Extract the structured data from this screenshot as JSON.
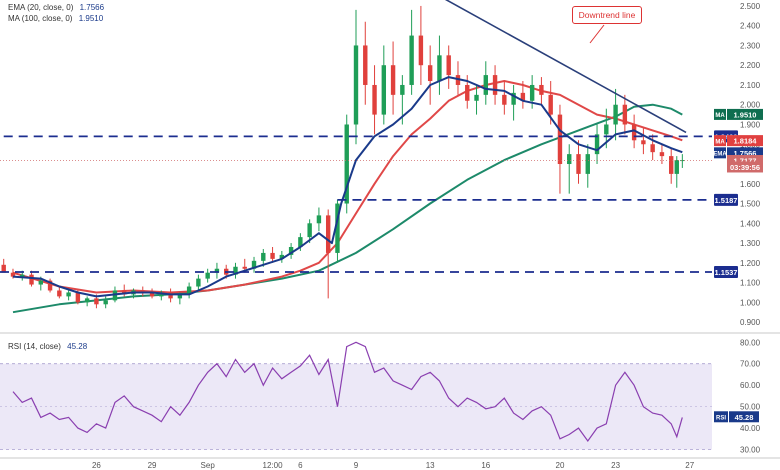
{
  "chart_data": {
    "type": "candlestick",
    "legend_price": [
      {
        "text": "EMA (20, close, 0)",
        "value": "1.7566",
        "color": "#1a3a8a"
      },
      {
        "text": "MA (100, close, 0)",
        "value": "1.9510",
        "color": "#1a3a8a"
      }
    ],
    "legend_rsi": {
      "text": "RSI (14, close)",
      "value": "45.28",
      "color": "#1a3a8a"
    },
    "x_labels": [
      {
        "label": "26",
        "day": 26
      },
      {
        "label": "29",
        "day": 29
      },
      {
        "label": "Sep",
        "day": 32
      },
      {
        "label": "12:00",
        "day": 35.5
      },
      {
        "label": "6",
        "day": 37
      },
      {
        "label": "9",
        "day": 40
      },
      {
        "label": "13",
        "day": 44
      },
      {
        "label": "16",
        "day": 47
      },
      {
        "label": "20",
        "day": 51
      },
      {
        "label": "23",
        "day": 54
      },
      {
        "label": "27",
        "day": 58
      }
    ],
    "price_axis": {
      "min": 0.86,
      "max": 2.53,
      "ticks": [
        "0.900",
        "1.000",
        "1.100",
        "1.200",
        "1.300",
        "1.400",
        "1.500",
        "1.600",
        "1.700",
        "1.800",
        "1.900",
        "2.000",
        "2.100",
        "2.200",
        "2.300",
        "2.400",
        "2.500"
      ]
    },
    "rsi_axis": {
      "min": 27,
      "max": 82,
      "ticks": [
        "30.00",
        "40.00",
        "50.00",
        "60.00",
        "70.00",
        "80.00"
      ]
    },
    "horizontal_levels": [
      {
        "value": 1.84,
        "label": "1.8400"
      },
      {
        "value": 1.5187,
        "label": "1.5187"
      },
      {
        "value": 1.1537,
        "label": "1.1537"
      }
    ],
    "tags": [
      {
        "series": "MA",
        "price": 1.951,
        "tag": "MA",
        "label": "1.9510",
        "color": "#0f6e50"
      },
      {
        "series": "MA",
        "price": 1.8184,
        "tag": "MA",
        "label": "1.8184",
        "color": "#e04040"
      },
      {
        "series": "EMA",
        "price": 1.7566,
        "tag": "EMA",
        "label": "1.7566",
        "color": "#1a3a8a"
      },
      {
        "series": "price",
        "price": 1.7177,
        "tag": "",
        "label": "1.7177",
        "color": "#d06a6a"
      },
      {
        "series": "countdown",
        "price": 1.685,
        "tag": "",
        "label": "03:39:56",
        "color": "#d06a6a"
      }
    ],
    "rsi_tag": {
      "tag": "RSI",
      "label": "45.28",
      "value": 45.28,
      "color": "#1a3a8a"
    },
    "annotation": {
      "text": "Downtrend line",
      "color": "#d33"
    },
    "downtrend_line": {
      "from": {
        "day": 44.5,
        "price": 2.55
      },
      "to": {
        "day": 57.8,
        "price": 1.86
      }
    },
    "ema20": [
      [
        21.5,
        1.13
      ],
      [
        23,
        1.12
      ],
      [
        24,
        1.08
      ],
      [
        25,
        1.05
      ],
      [
        26,
        1.03
      ],
      [
        27,
        1.04
      ],
      [
        28,
        1.05
      ],
      [
        29,
        1.05
      ],
      [
        30,
        1.04
      ],
      [
        31,
        1.04
      ],
      [
        32,
        1.08
      ],
      [
        33,
        1.13
      ],
      [
        34,
        1.16
      ],
      [
        35,
        1.19
      ],
      [
        36,
        1.22
      ],
      [
        37,
        1.28
      ],
      [
        38,
        1.35
      ],
      [
        38.7,
        1.3
      ],
      [
        39.2,
        1.5
      ],
      [
        40,
        1.72
      ],
      [
        41,
        1.84
      ],
      [
        42,
        1.9
      ],
      [
        43,
        1.98
      ],
      [
        44,
        2.1
      ],
      [
        45,
        2.14
      ],
      [
        46,
        2.12
      ],
      [
        47,
        2.08
      ],
      [
        48,
        2.07
      ],
      [
        49,
        2.02
      ],
      [
        50,
        2.0
      ],
      [
        51,
        1.87
      ],
      [
        52,
        1.8
      ],
      [
        53,
        1.77
      ],
      [
        54,
        1.85
      ],
      [
        55,
        1.87
      ],
      [
        56,
        1.82
      ],
      [
        57,
        1.78
      ],
      [
        57.6,
        1.76
      ]
    ],
    "ma50": [
      [
        21.5,
        1.15
      ],
      [
        24,
        1.08
      ],
      [
        26,
        1.05
      ],
      [
        28,
        1.06
      ],
      [
        30,
        1.05
      ],
      [
        32,
        1.06
      ],
      [
        34,
        1.09
      ],
      [
        36,
        1.13
      ],
      [
        37,
        1.16
      ],
      [
        38,
        1.2
      ],
      [
        39,
        1.3
      ],
      [
        40,
        1.45
      ],
      [
        41,
        1.6
      ],
      [
        42,
        1.74
      ],
      [
        43,
        1.85
      ],
      [
        44,
        1.93
      ],
      [
        45,
        2.02
      ],
      [
        46,
        2.07
      ],
      [
        47,
        2.1
      ],
      [
        48,
        2.12
      ],
      [
        49,
        2.1
      ],
      [
        50,
        2.07
      ],
      [
        51,
        2.05
      ],
      [
        52,
        2.0
      ],
      [
        53,
        1.95
      ],
      [
        54,
        1.93
      ],
      [
        55,
        1.9
      ],
      [
        56,
        1.87
      ],
      [
        57,
        1.84
      ],
      [
        57.6,
        1.82
      ]
    ],
    "ma100": [
      [
        21.5,
        0.95
      ],
      [
        24,
        0.99
      ],
      [
        26,
        1.01
      ],
      [
        28,
        1.03
      ],
      [
        30,
        1.04
      ],
      [
        32,
        1.06
      ],
      [
        34,
        1.09
      ],
      [
        36,
        1.12
      ],
      [
        38,
        1.16
      ],
      [
        40,
        1.25
      ],
      [
        42,
        1.37
      ],
      [
        44,
        1.5
      ],
      [
        46,
        1.62
      ],
      [
        48,
        1.72
      ],
      [
        50,
        1.8
      ],
      [
        52,
        1.87
      ],
      [
        54,
        1.94
      ],
      [
        55,
        1.99
      ],
      [
        56,
        2.0
      ],
      [
        57,
        1.98
      ],
      [
        57.6,
        1.95
      ]
    ],
    "rsi": [
      [
        21.5,
        57
      ],
      [
        22,
        52
      ],
      [
        22.5,
        54
      ],
      [
        23,
        45
      ],
      [
        23.5,
        47
      ],
      [
        24,
        44
      ],
      [
        24.5,
        45
      ],
      [
        25,
        40
      ],
      [
        25.5,
        38
      ],
      [
        26,
        42
      ],
      [
        26.5,
        40
      ],
      [
        27,
        52
      ],
      [
        27.5,
        55
      ],
      [
        28,
        50
      ],
      [
        28.5,
        48
      ],
      [
        29,
        46
      ],
      [
        29.5,
        43
      ],
      [
        30,
        50
      ],
      [
        30.5,
        46
      ],
      [
        31,
        52
      ],
      [
        31.5,
        60
      ],
      [
        32,
        66
      ],
      [
        32.5,
        70
      ],
      [
        33,
        64
      ],
      [
        33.5,
        72
      ],
      [
        34,
        66
      ],
      [
        34.5,
        70
      ],
      [
        35,
        60
      ],
      [
        35.5,
        68
      ],
      [
        36,
        63
      ],
      [
        36.5,
        66
      ],
      [
        37,
        69
      ],
      [
        37.5,
        74
      ],
      [
        38,
        65
      ],
      [
        38.5,
        72
      ],
      [
        39,
        50
      ],
      [
        39.5,
        78
      ],
      [
        40,
        80
      ],
      [
        40.5,
        78
      ],
      [
        41,
        66
      ],
      [
        41.5,
        68
      ],
      [
        42,
        62
      ],
      [
        42.5,
        60
      ],
      [
        43,
        58
      ],
      [
        43.5,
        64
      ],
      [
        44,
        66
      ],
      [
        44.5,
        62
      ],
      [
        45,
        54
      ],
      [
        45.5,
        50
      ],
      [
        46,
        54
      ],
      [
        46.5,
        52
      ],
      [
        47,
        49
      ],
      [
        47.5,
        50
      ],
      [
        48,
        54
      ],
      [
        48.5,
        47
      ],
      [
        49,
        44
      ],
      [
        49.5,
        48
      ],
      [
        50,
        50
      ],
      [
        50.5,
        46
      ],
      [
        51,
        35
      ],
      [
        51.5,
        37
      ],
      [
        52,
        40
      ],
      [
        52.5,
        34
      ],
      [
        53,
        40
      ],
      [
        53.5,
        42
      ],
      [
        54,
        60
      ],
      [
        54.5,
        66
      ],
      [
        55,
        60
      ],
      [
        55.5,
        50
      ],
      [
        56,
        47
      ],
      [
        56.5,
        46
      ],
      [
        57,
        42
      ],
      [
        57.3,
        36
      ],
      [
        57.6,
        45
      ]
    ],
    "candles": [
      [
        21.0,
        1.19,
        1.22,
        1.16,
        1.15
      ],
      [
        21.5,
        1.15,
        1.17,
        1.12,
        1.13
      ],
      [
        22.0,
        1.13,
        1.16,
        1.11,
        1.14
      ],
      [
        22.5,
        1.14,
        1.16,
        1.08,
        1.09
      ],
      [
        23.0,
        1.09,
        1.13,
        1.06,
        1.11
      ],
      [
        23.5,
        1.11,
        1.12,
        1.05,
        1.06
      ],
      [
        24.0,
        1.06,
        1.08,
        1.02,
        1.03
      ],
      [
        24.5,
        1.03,
        1.06,
        1.01,
        1.05
      ],
      [
        25.0,
        1.05,
        1.06,
        0.99,
        1.0
      ],
      [
        25.5,
        1.0,
        1.03,
        0.98,
        1.02
      ],
      [
        26.0,
        1.02,
        1.04,
        0.97,
        0.99
      ],
      [
        26.5,
        0.99,
        1.03,
        0.97,
        1.01
      ],
      [
        27.0,
        1.01,
        1.08,
        1.0,
        1.06
      ],
      [
        27.5,
        1.06,
        1.09,
        1.03,
        1.04
      ],
      [
        28.0,
        1.04,
        1.07,
        1.02,
        1.06
      ],
      [
        28.5,
        1.06,
        1.08,
        1.03,
        1.05
      ],
      [
        29.0,
        1.05,
        1.07,
        1.02,
        1.03
      ],
      [
        29.5,
        1.03,
        1.06,
        1.01,
        1.05
      ],
      [
        30.0,
        1.05,
        1.07,
        1.0,
        1.02
      ],
      [
        30.5,
        1.02,
        1.05,
        0.99,
        1.04
      ],
      [
        31.0,
        1.04,
        1.1,
        1.02,
        1.08
      ],
      [
        31.5,
        1.08,
        1.14,
        1.06,
        1.12
      ],
      [
        32.0,
        1.12,
        1.17,
        1.1,
        1.15
      ],
      [
        32.5,
        1.15,
        1.2,
        1.12,
        1.17
      ],
      [
        33.0,
        1.17,
        1.19,
        1.12,
        1.14
      ],
      [
        33.5,
        1.14,
        1.2,
        1.12,
        1.18
      ],
      [
        34.0,
        1.18,
        1.22,
        1.15,
        1.17
      ],
      [
        34.5,
        1.17,
        1.23,
        1.15,
        1.21
      ],
      [
        35.0,
        1.21,
        1.27,
        1.18,
        1.25
      ],
      [
        35.5,
        1.25,
        1.28,
        1.2,
        1.22
      ],
      [
        36.0,
        1.22,
        1.26,
        1.2,
        1.24
      ],
      [
        36.5,
        1.24,
        1.3,
        1.22,
        1.28
      ],
      [
        37.0,
        1.28,
        1.35,
        1.26,
        1.33
      ],
      [
        37.5,
        1.33,
        1.42,
        1.3,
        1.4
      ],
      [
        38.0,
        1.4,
        1.48,
        1.36,
        1.44
      ],
      [
        38.5,
        1.44,
        1.47,
        1.02,
        1.25
      ],
      [
        39.0,
        1.25,
        1.52,
        1.2,
        1.5
      ],
      [
        39.5,
        1.5,
        1.95,
        1.45,
        1.9
      ],
      [
        40.0,
        1.9,
        2.48,
        1.8,
        2.3
      ],
      [
        40.5,
        2.3,
        2.42,
        2.0,
        2.1
      ],
      [
        41.0,
        2.1,
        2.2,
        1.85,
        1.95
      ],
      [
        41.5,
        1.95,
        2.3,
        1.9,
        2.2
      ],
      [
        42.0,
        2.2,
        2.32,
        1.95,
        2.05
      ],
      [
        42.5,
        2.05,
        2.15,
        1.9,
        2.1
      ],
      [
        43.0,
        2.1,
        2.48,
        2.05,
        2.35
      ],
      [
        43.5,
        2.35,
        2.5,
        2.1,
        2.2
      ],
      [
        44.0,
        2.2,
        2.3,
        2.0,
        2.12
      ],
      [
        44.5,
        2.12,
        2.35,
        2.05,
        2.25
      ],
      [
        45.0,
        2.25,
        2.3,
        2.08,
        2.15
      ],
      [
        45.5,
        2.15,
        2.22,
        2.05,
        2.1
      ],
      [
        46.0,
        2.1,
        2.15,
        1.98,
        2.02
      ],
      [
        46.5,
        2.02,
        2.1,
        1.95,
        2.05
      ],
      [
        47.0,
        2.05,
        2.22,
        2.0,
        2.15
      ],
      [
        47.5,
        2.15,
        2.2,
        2.0,
        2.05
      ],
      [
        48.0,
        2.05,
        2.12,
        1.95,
        2.0
      ],
      [
        48.5,
        2.0,
        2.1,
        1.92,
        2.06
      ],
      [
        49.0,
        2.06,
        2.12,
        1.98,
        2.02
      ],
      [
        49.5,
        2.02,
        2.15,
        1.98,
        2.1
      ],
      [
        50.0,
        2.1,
        2.14,
        2.0,
        2.05
      ],
      [
        50.5,
        2.05,
        2.12,
        1.9,
        1.95
      ],
      [
        51.0,
        1.95,
        2.0,
        1.55,
        1.7
      ],
      [
        51.5,
        1.7,
        1.8,
        1.55,
        1.75
      ],
      [
        52.0,
        1.75,
        1.82,
        1.6,
        1.65
      ],
      [
        52.5,
        1.65,
        1.8,
        1.58,
        1.75
      ],
      [
        53.0,
        1.75,
        1.9,
        1.7,
        1.85
      ],
      [
        53.5,
        1.85,
        1.98,
        1.78,
        1.9
      ],
      [
        54.0,
        1.9,
        2.08,
        1.82,
        2.0
      ],
      [
        54.5,
        2.0,
        2.05,
        1.85,
        1.9
      ],
      [
        55.0,
        1.9,
        1.95,
        1.78,
        1.82
      ],
      [
        55.5,
        1.82,
        1.88,
        1.75,
        1.8
      ],
      [
        56.0,
        1.8,
        1.85,
        1.72,
        1.76
      ],
      [
        56.5,
        1.76,
        1.8,
        1.7,
        1.74
      ],
      [
        57.0,
        1.74,
        1.78,
        1.6,
        1.65
      ],
      [
        57.3,
        1.65,
        1.74,
        1.58,
        1.72
      ],
      [
        57.6,
        1.72,
        1.75,
        1.68,
        1.72
      ]
    ]
  }
}
